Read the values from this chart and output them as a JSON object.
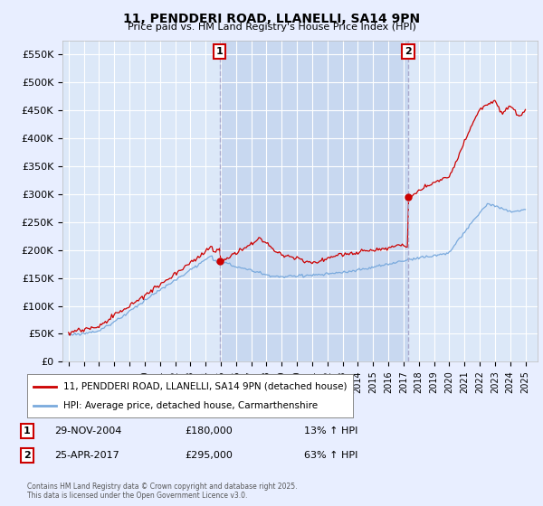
{
  "title": "11, PENDDERI ROAD, LLANELLI, SA14 9PN",
  "subtitle": "Price paid vs. HM Land Registry's House Price Index (HPI)",
  "legend_label_red": "11, PENDDERI ROAD, LLANELLI, SA14 9PN (detached house)",
  "legend_label_blue": "HPI: Average price, detached house, Carmarthenshire",
  "annotation1_date": "29-NOV-2004",
  "annotation1_price": "£180,000",
  "annotation1_hpi": "13% ↑ HPI",
  "annotation2_date": "25-APR-2017",
  "annotation2_price": "£295,000",
  "annotation2_hpi": "63% ↑ HPI",
  "footer": "Contains HM Land Registry data © Crown copyright and database right 2025.\nThis data is licensed under the Open Government Licence v3.0.",
  "ylim": [
    0,
    575000
  ],
  "yticks": [
    0,
    50000,
    100000,
    150000,
    200000,
    250000,
    300000,
    350000,
    400000,
    450000,
    500000,
    550000
  ],
  "ytick_labels": [
    "£0",
    "£50K",
    "£100K",
    "£150K",
    "£200K",
    "£250K",
    "£300K",
    "£350K",
    "£400K",
    "£450K",
    "£500K",
    "£550K"
  ],
  "fig_bg_color": "#e8eeff",
  "plot_bg_color": "#dce8f8",
  "highlight_bg_color": "#c8d8f0",
  "grid_color": "#ffffff",
  "red_color": "#cc0000",
  "blue_color": "#7aaadd",
  "vline_color": "#aaaacc",
  "vline_x1": 2004.92,
  "vline_x2": 2017.31,
  "marker1_y": 180000,
  "marker2_y": 295000,
  "xlim_left": 1994.6,
  "xlim_right": 2025.8
}
